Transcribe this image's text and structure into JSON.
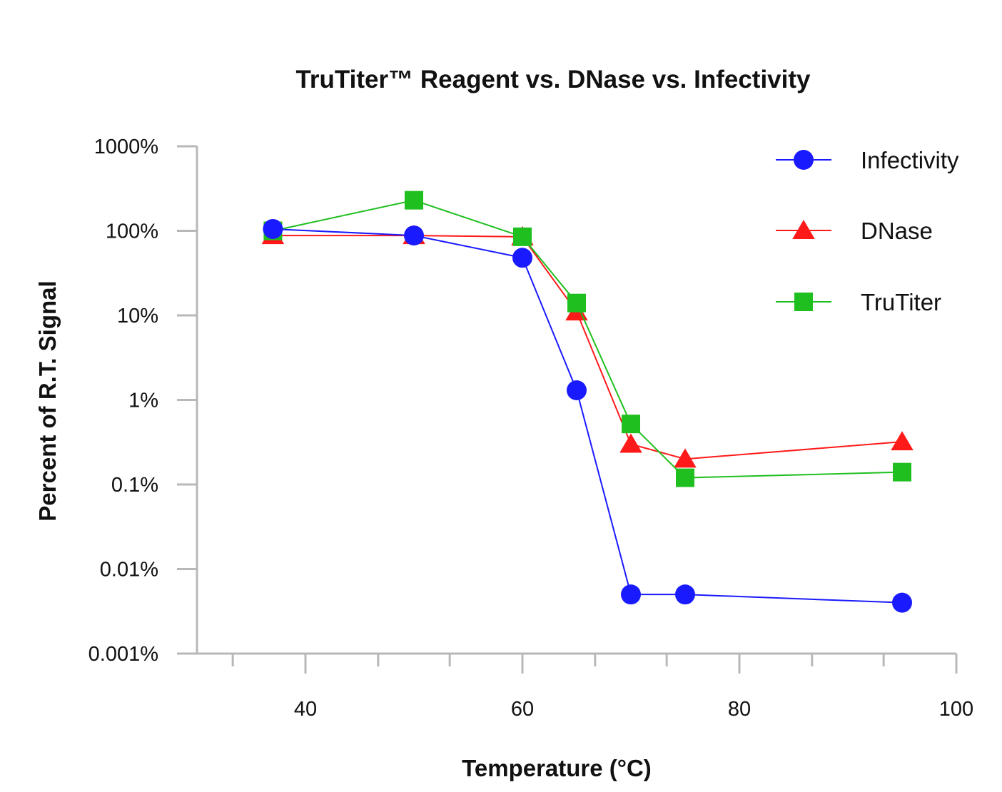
{
  "chart_data": {
    "type": "line",
    "title": "TruTiter™ Reagent vs. DNase vs. Infectivity",
    "xlabel": "Temperature (°C)",
    "ylabel": "Percent of R.T. Signal",
    "xlim": [
      30,
      100
    ],
    "x_ticks": [
      40,
      60,
      80,
      100
    ],
    "x_minor_ticks": [
      33.3,
      46.7,
      53.3,
      66.7,
      73.3,
      86.7,
      93.3
    ],
    "ylim": [
      0.001,
      1000
    ],
    "y_scale": "log",
    "y_ticks": [
      {
        "value": 1000,
        "label": "1000%"
      },
      {
        "value": 100,
        "label": "100%"
      },
      {
        "value": 10,
        "label": "10%"
      },
      {
        "value": 1,
        "label": "1%"
      },
      {
        "value": 0.1,
        "label": "0.1%"
      },
      {
        "value": 0.01,
        "label": "0.01%"
      },
      {
        "value": 0.001,
        "label": "0.001%"
      }
    ],
    "legend_position": "top-right",
    "grid": false,
    "series": [
      {
        "name": "Infectivity",
        "color": "#1a1aff",
        "marker": "circle",
        "x": [
          37,
          50,
          60,
          65,
          70,
          75,
          95
        ],
        "y": [
          105,
          88,
          48,
          1.3,
          0.005,
          0.005,
          0.004
        ]
      },
      {
        "name": "DNase",
        "color": "#ff1a1a",
        "marker": "triangle",
        "x": [
          37,
          50,
          60,
          65,
          70,
          75,
          95
        ],
        "y": [
          88,
          88,
          85,
          11,
          0.3,
          0.2,
          0.32
        ]
      },
      {
        "name": "TruTiter",
        "color": "#1fbf1f",
        "marker": "square",
        "x": [
          37,
          50,
          60,
          65,
          70,
          75,
          95
        ],
        "y": [
          100,
          230,
          85,
          14,
          0.52,
          0.12,
          0.14
        ]
      }
    ]
  }
}
